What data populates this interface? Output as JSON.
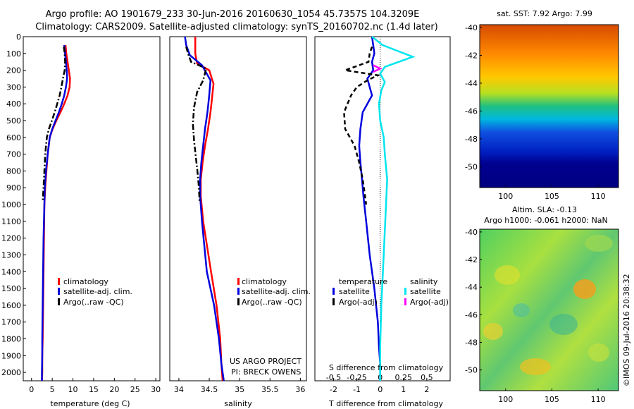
{
  "header": {
    "line1": "Argo profile: AO 1901679_233 30-Jun-2016 20160630_1054 45.7357S 104.3209E",
    "line2": "Climatology: CARS2009. Satellite-adjusted climatology: synTS_20160702.nc (1.4d later)"
  },
  "colors": {
    "climatology": "#ff0000",
    "satellite": "#0000dd",
    "argo": "#000000",
    "sal_satellite": "#00e5ee",
    "sal_argo": "#ff00ff"
  },
  "legend": {
    "climatology": "climatology",
    "satellite": "satellite-adj. clim.",
    "argo": "Argo(..raw -QC)",
    "temperature_head": "temperature",
    "salinity_head": "salinity",
    "sat_short": "satellite",
    "argo_adj": "Argo(-adj)"
  },
  "credits": {
    "project": "US ARGO PROJECT",
    "pi": "PI: BRECK OWENS"
  },
  "map_top": {
    "title": "sat. SST: 7.92  Argo: 7.99",
    "yticks": [
      "-40",
      "-42",
      "-44",
      "-46",
      "-48",
      "-50"
    ],
    "xticks": [
      "100",
      "105",
      "110"
    ]
  },
  "map_bottom": {
    "title1": "Altim. SLA: -0.13",
    "title2": "Argo h1000: -0.061 h2000: NaN",
    "yticks": [
      "-40",
      "-42",
      "-44",
      "-46",
      "-48",
      "-50"
    ],
    "xticks": [
      "100",
      "105",
      "110"
    ]
  },
  "watermark": "©IMOS 09-Jul-2016 20:38:32",
  "chart_data": [
    {
      "type": "line",
      "xlabel": "temperature (deg C)",
      "ylabel": "",
      "xlim": [
        -2,
        31
      ],
      "ylim": [
        2050,
        0
      ],
      "xticks": [
        "0",
        "5",
        "10",
        "15",
        "20",
        "25",
        "30"
      ],
      "yticks": [
        "0",
        "100",
        "200",
        "300",
        "400",
        "500",
        "600",
        "700",
        "800",
        "900",
        "1000",
        "1100",
        "1200",
        "1300",
        "1400",
        "1500",
        "1600",
        "1700",
        "1800",
        "1900",
        "2000"
      ],
      "series": [
        {
          "name": "climatology",
          "style": "solid",
          "color": "#ff0000",
          "x": [
            8.2,
            8.4,
            8.7,
            9.0,
            9.3,
            9.2,
            8.7,
            7.9,
            7.0,
            6.0,
            5.1,
            4.4,
            3.9,
            3.6,
            3.3,
            3.1,
            3.0,
            2.9,
            2.8,
            2.7,
            2.6,
            2.6,
            2.5
          ],
          "y": [
            50,
            100,
            150,
            200,
            250,
            300,
            350,
            400,
            450,
            500,
            550,
            600,
            700,
            800,
            900,
            1000,
            1200,
            1400,
            1600,
            1800,
            1900,
            2000,
            2050
          ]
        },
        {
          "name": "satellite-adj. clim.",
          "style": "solid",
          "color": "#0000dd",
          "x": [
            7.9,
            8.1,
            8.3,
            8.5,
            8.6,
            8.3,
            7.9,
            7.3,
            6.6,
            5.8,
            5.0,
            4.4,
            3.9,
            3.5,
            3.2,
            3.1,
            2.9,
            2.8,
            2.7,
            2.6,
            2.6,
            2.5,
            2.5
          ],
          "y": [
            50,
            100,
            150,
            200,
            250,
            300,
            350,
            400,
            450,
            500,
            550,
            600,
            700,
            800,
            900,
            1000,
            1200,
            1400,
            1600,
            1800,
            1900,
            2000,
            2050
          ]
        },
        {
          "name": "Argo(..raw -QC)",
          "style": "dash-dot",
          "color": "#000000",
          "x": [
            7.8,
            8.0,
            8.1,
            8.0,
            7.6,
            7.2,
            6.8,
            6.2,
            5.6,
            4.9,
            4.2,
            3.7,
            3.3,
            3.1,
            2.9,
            2.7
          ],
          "y": [
            60,
            100,
            150,
            200,
            250,
            300,
            350,
            400,
            450,
            500,
            550,
            600,
            700,
            800,
            900,
            980
          ]
        }
      ]
    },
    {
      "type": "line",
      "xlabel": "salinity",
      "ylabel": "",
      "xlim": [
        33.85,
        36.1
      ],
      "ylim": [
        2050,
        0
      ],
      "xticks": [
        "34",
        "34.5",
        "35",
        "35.5",
        "36"
      ],
      "series": [
        {
          "name": "climatology",
          "style": "solid",
          "color": "#ff0000",
          "x": [
            34.27,
            34.27,
            34.3,
            34.5,
            34.57,
            34.55,
            34.52,
            34.48,
            34.43,
            34.39,
            34.36,
            34.36,
            34.4,
            34.53,
            34.62,
            34.68,
            34.7,
            34.72
          ],
          "y": [
            0,
            100,
            160,
            200,
            280,
            350,
            450,
            550,
            650,
            750,
            850,
            950,
            1100,
            1400,
            1600,
            1800,
            1950,
            2050
          ]
        },
        {
          "name": "satellite-adj. clim.",
          "style": "solid",
          "color": "#0000dd",
          "x": [
            34.1,
            34.12,
            34.18,
            34.38,
            34.52,
            34.5,
            34.47,
            34.43,
            34.4,
            34.37,
            34.35,
            34.35,
            34.38,
            34.46,
            34.58,
            34.66,
            34.7,
            34.74
          ],
          "y": [
            0,
            50,
            110,
            170,
            260,
            350,
            450,
            550,
            650,
            750,
            850,
            950,
            1100,
            1400,
            1600,
            1800,
            1950,
            2050
          ]
        },
        {
          "name": "Argo(..raw -QC)",
          "style": "dash-dot",
          "color": "#000000",
          "x": [
            34.12,
            34.15,
            34.2,
            34.45,
            34.4,
            34.3,
            34.25,
            34.23,
            34.25,
            34.28,
            34.31,
            34.33,
            34.34
          ],
          "y": [
            60,
            100,
            150,
            190,
            260,
            330,
            420,
            520,
            620,
            720,
            820,
            900,
            980
          ]
        }
      ]
    },
    {
      "type": "line",
      "xlabel": "T difference from climatology",
      "xlabel2": "S difference from climatology",
      "ylabel": "",
      "xlim": [
        -2.8,
        3.0
      ],
      "ylim": [
        2050,
        0
      ],
      "xticks": [
        "-2",
        "-1",
        "0",
        "1",
        "2"
      ],
      "xticks_s": [
        "-0.5",
        "-0.25",
        "0",
        "0.25",
        "0.5"
      ],
      "series": [
        {
          "name": "temperature satellite",
          "style": "solid",
          "color": "#0000dd",
          "x": [
            -0.35,
            -0.3,
            -0.25,
            -0.35,
            -0.3,
            -0.55,
            -0.45,
            -0.35,
            -0.75,
            -0.85,
            -0.9,
            -0.85,
            -0.78,
            -0.72,
            -0.6,
            -0.45,
            -0.25,
            -0.1,
            -0.05,
            0.0,
            0.0
          ],
          "y": [
            0,
            50,
            100,
            150,
            200,
            250,
            300,
            350,
            450,
            550,
            650,
            750,
            850,
            950,
            1100,
            1300,
            1500,
            1700,
            1850,
            1950,
            2050
          ]
        },
        {
          "name": "salinity satellite",
          "style": "solid",
          "color": "#00e5ee",
          "x": [
            -0.35,
            0.1,
            1.4,
            0.2,
            0.0,
            0.2,
            0.05,
            -0.05,
            0.0,
            0.15,
            0.2,
            0.3,
            0.25,
            0.15,
            0.05,
            0.0,
            0.0
          ],
          "y": [
            0,
            50,
            120,
            180,
            220,
            270,
            320,
            400,
            500,
            600,
            700,
            850,
            1000,
            1300,
            1600,
            1850,
            2050
          ]
        },
        {
          "name": "temperature Argo(-adj)",
          "style": "dashed",
          "color": "#000000",
          "x": [
            -0.35,
            -0.45,
            -0.5,
            -1.5,
            -0.1,
            -0.55,
            -1.0,
            -1.25,
            -1.55,
            -1.5,
            -1.1,
            -0.9,
            -0.75,
            -0.65,
            -0.6
          ],
          "y": [
            60,
            100,
            150,
            200,
            230,
            260,
            300,
            350,
            450,
            550,
            650,
            750,
            850,
            950,
            1000
          ]
        },
        {
          "name": "salinity Argo(-adj)",
          "style": "solid",
          "color": "#ff00ff",
          "x": [
            -0.3,
            0.0,
            -0.3
          ],
          "y": [
            170,
            190,
            210
          ]
        }
      ]
    }
  ]
}
